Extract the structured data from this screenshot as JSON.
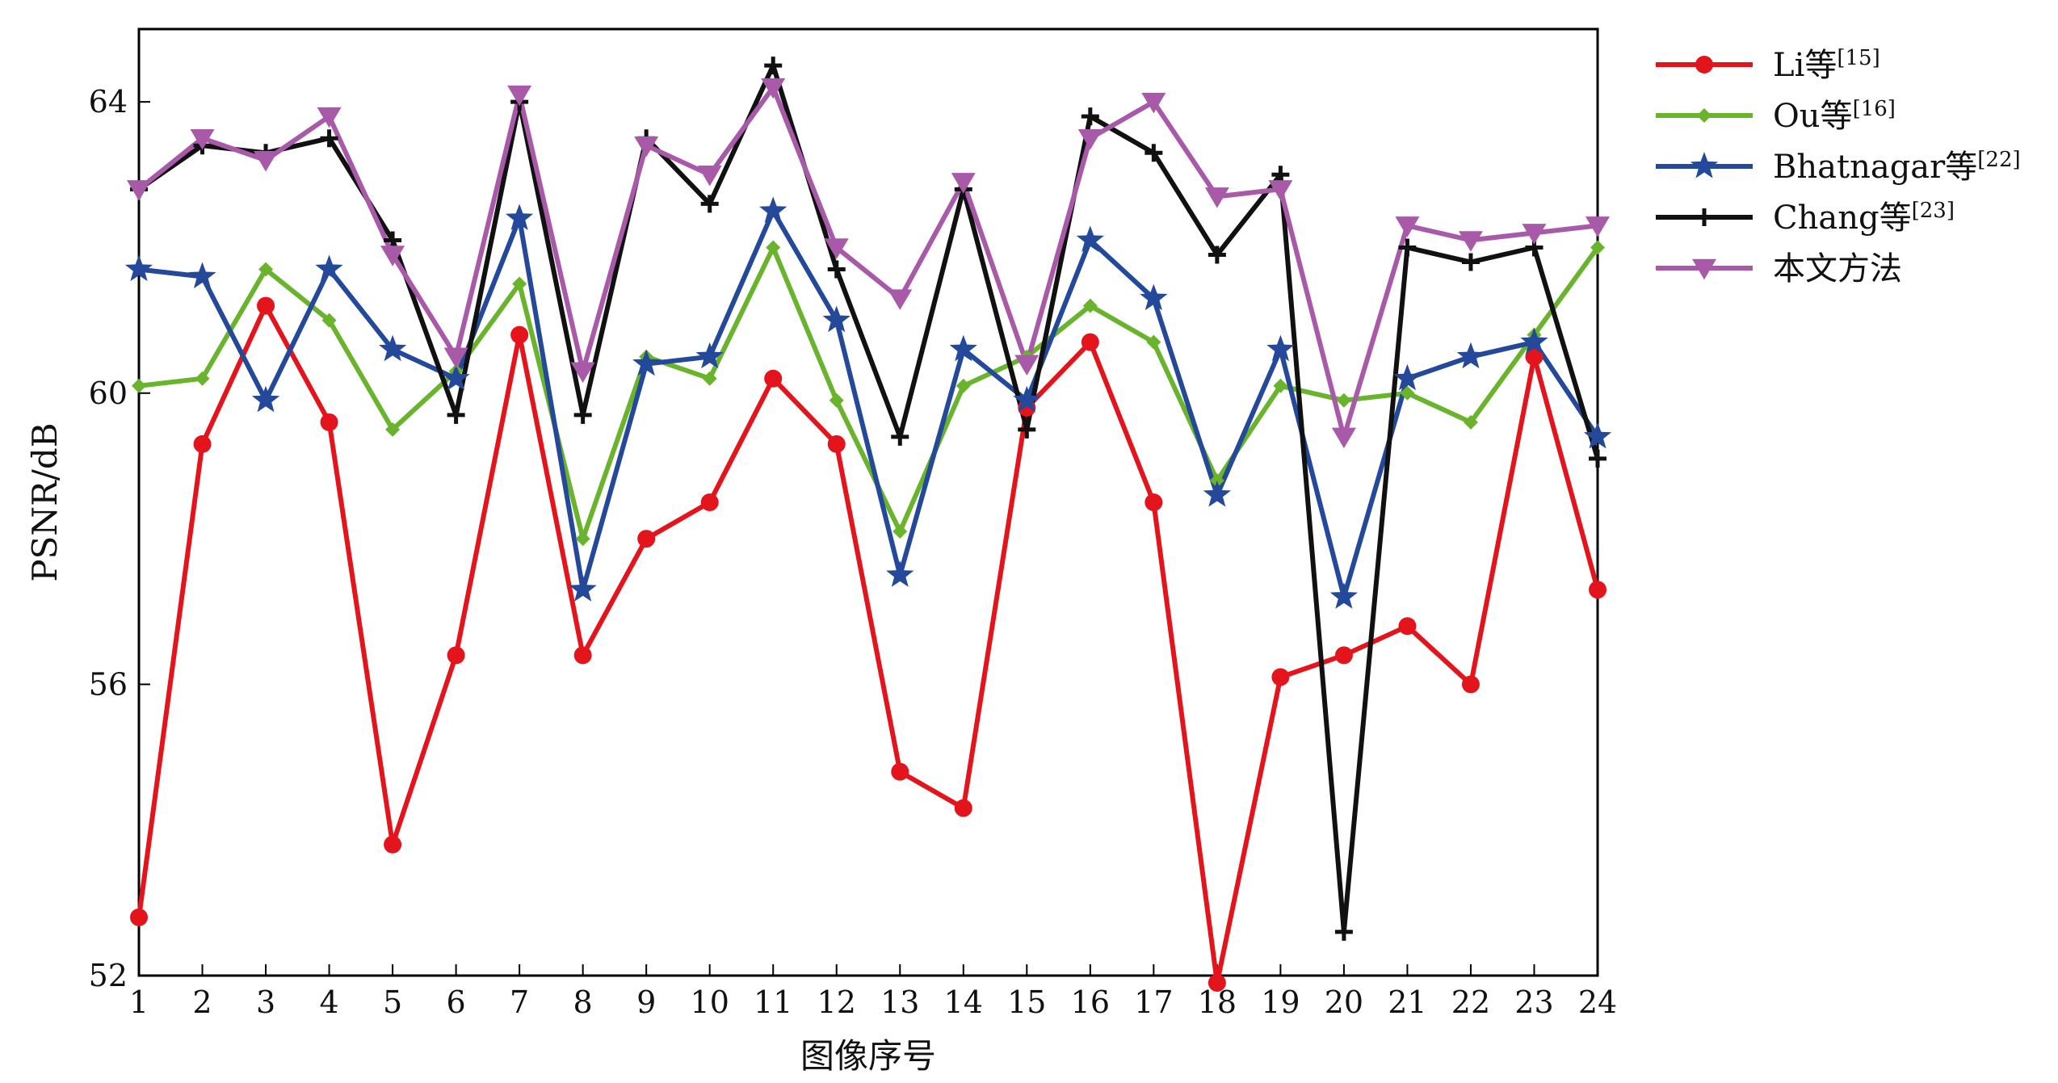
{
  "chart_data": {
    "type": "line",
    "xlabel": "图像序号",
    "ylabel": "PSNR/dB",
    "xlim": [
      1,
      24
    ],
    "ylim": [
      52,
      65
    ],
    "x": [
      1,
      2,
      3,
      4,
      5,
      6,
      7,
      8,
      9,
      10,
      11,
      12,
      13,
      14,
      15,
      16,
      17,
      18,
      19,
      20,
      21,
      22,
      23,
      24
    ],
    "x_ticks": [
      1,
      2,
      3,
      4,
      5,
      6,
      7,
      8,
      9,
      10,
      11,
      12,
      13,
      14,
      15,
      16,
      17,
      18,
      19,
      20,
      21,
      22,
      23,
      24
    ],
    "y_ticks": [
      52,
      56,
      60,
      64
    ],
    "grid": false,
    "legend_position": "outside-right",
    "series": [
      {
        "name": "Li等",
        "ref": "[15]",
        "color": "#e3141c",
        "marker": "circle",
        "values": [
          52.8,
          59.3,
          61.2,
          59.6,
          53.8,
          56.4,
          60.8,
          56.4,
          58.0,
          58.5,
          60.2,
          59.3,
          54.8,
          54.3,
          59.8,
          60.7,
          58.5,
          51.9,
          56.1,
          56.4,
          56.8,
          56.0,
          60.5,
          57.3
        ]
      },
      {
        "name": "Ou等",
        "ref": "[16]",
        "color": "#6ab42d",
        "marker": "diamond",
        "values": [
          60.1,
          60.2,
          61.7,
          61.0,
          59.5,
          60.3,
          61.5,
          58.0,
          60.5,
          60.2,
          62.0,
          59.9,
          58.1,
          60.1,
          60.5,
          61.2,
          60.7,
          58.8,
          60.1,
          59.9,
          60.0,
          59.6,
          60.8,
          62.0
        ]
      },
      {
        "name": "Bhatnagar等",
        "ref": "[22]",
        "color": "#24499a",
        "marker": "star",
        "values": [
          61.7,
          61.6,
          59.9,
          61.7,
          60.6,
          60.2,
          62.4,
          57.3,
          60.4,
          60.5,
          62.5,
          61.0,
          57.5,
          60.6,
          59.9,
          62.1,
          61.3,
          58.6,
          60.6,
          57.2,
          60.2,
          60.5,
          60.7,
          59.4
        ]
      },
      {
        "name": "Chang等",
        "ref": "[23]",
        "color": "#111111",
        "marker": "plus",
        "values": [
          62.8,
          63.4,
          63.3,
          63.5,
          62.1,
          59.7,
          64.0,
          59.7,
          63.5,
          62.6,
          64.5,
          61.7,
          59.4,
          62.8,
          59.5,
          63.8,
          63.3,
          61.9,
          63.0,
          52.6,
          62.0,
          61.8,
          62.0,
          59.1
        ]
      },
      {
        "name": "本文方法",
        "ref": "",
        "color": "#a85aa8",
        "marker": "triangle-down",
        "values": [
          62.8,
          63.5,
          63.2,
          63.8,
          61.9,
          60.5,
          64.1,
          60.3,
          63.4,
          63.0,
          64.2,
          62.0,
          61.3,
          62.9,
          60.4,
          63.5,
          64.0,
          62.7,
          62.8,
          59.4,
          62.3,
          62.1,
          62.2,
          62.3
        ]
      }
    ]
  }
}
